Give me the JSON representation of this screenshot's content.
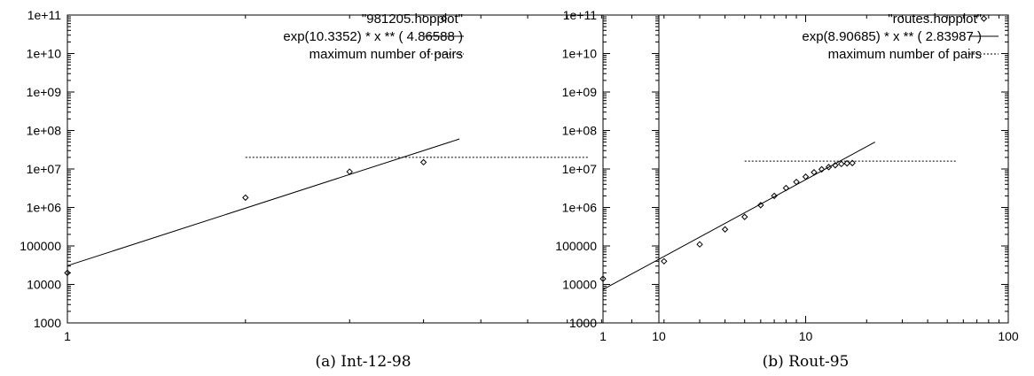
{
  "chart_data": [
    {
      "type": "scatter",
      "caption": "(a) Int-12-98",
      "xscale": "log",
      "yscale": "log",
      "xlim": [
        1,
        10
      ],
      "ylim": [
        1000,
        100000000000
      ],
      "xticks": [
        "1",
        "10"
      ],
      "yticks": [
        "1000",
        "10000",
        "100000",
        "1e+06",
        "1e+07",
        "1e+08",
        "1e+09",
        "1e+10",
        "1e+11"
      ],
      "grid": false,
      "legend_position": "top-right",
      "series": [
        {
          "name": "\"981205.hopplot\"",
          "kind": "points",
          "marker": "diamond",
          "x": [
            1,
            2,
            3,
            4
          ],
          "y": [
            20000,
            1800000,
            8500000,
            15000000
          ]
        },
        {
          "name": "exp(10.3352)  * x ** (  4.86588 )",
          "kind": "line",
          "style": "solid",
          "x": [
            1,
            4.6
          ],
          "y": [
            30700,
            60000000
          ]
        },
        {
          "name": "maximum number of pairs",
          "kind": "line",
          "style": "dotted",
          "x": [
            2,
            7.6
          ],
          "y": [
            20000000,
            20000000
          ]
        }
      ]
    },
    {
      "type": "scatter",
      "caption": "(b) Rout-95",
      "xscale": "log",
      "yscale": "log",
      "xlim": [
        1,
        100
      ],
      "ylim": [
        1000,
        100000000000
      ],
      "xticks": [
        "1",
        "10",
        "100"
      ],
      "yticks": [
        "1000",
        "10000",
        "100000",
        "1e+06",
        "1e+07",
        "1e+08",
        "1e+09",
        "1e+10",
        "1e+11"
      ],
      "grid": false,
      "legend_position": "top-right",
      "series": [
        {
          "name": "\"routes.hopplot\"",
          "kind": "points",
          "marker": "diamond",
          "x": [
            1,
            2,
            3,
            4,
            5,
            6,
            7,
            8,
            9,
            10,
            11,
            12,
            13,
            14,
            15,
            16,
            17
          ],
          "y": [
            14000,
            40000,
            110000,
            270000,
            570000,
            1150000,
            2000000,
            3200000,
            4600000,
            6300000,
            8200000,
            9800000,
            11200000,
            12500000,
            13500000,
            14000000,
            14300000
          ]
        },
        {
          "name": "exp(8.90685)  * x ** (  2.83987 )",
          "kind": "line",
          "style": "solid",
          "x": [
            1,
            22
          ],
          "y": [
            7380,
            50000000
          ]
        },
        {
          "name": "maximum number of pairs",
          "kind": "line",
          "style": "dotted",
          "x": [
            5,
            55
          ],
          "y": [
            16000000,
            16000000
          ]
        }
      ]
    }
  ]
}
